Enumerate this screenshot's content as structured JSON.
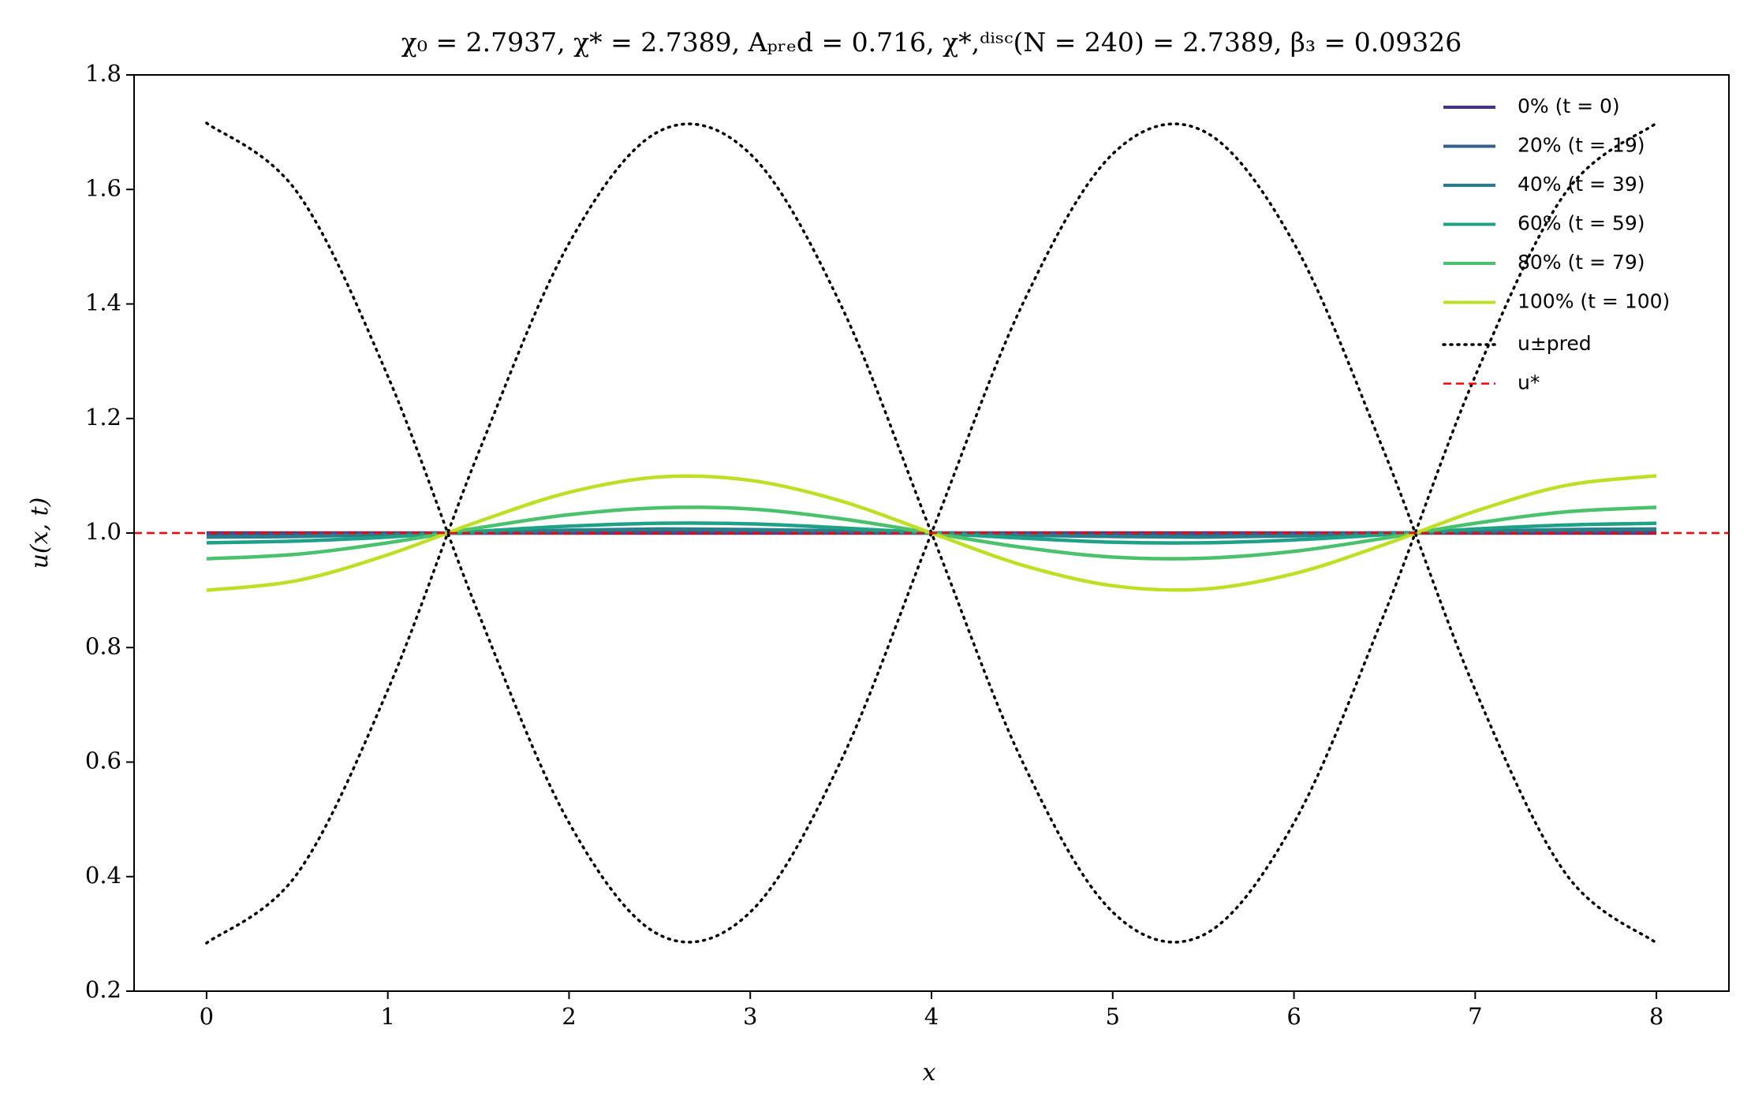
{
  "chart_data": {
    "type": "line",
    "title": "χ₀ = 2.7937,  χ* = 2.7389,  Aₚᵣₑd = 0.716,  χ*,ᵈⁱˢᶜ(N = 240) = 2.7389,  β₃ = 0.09326",
    "x_label": "x",
    "y_label": "u(x, t)",
    "xlim": [
      -0.4,
      8.4
    ],
    "ylim": [
      0.2,
      1.8
    ],
    "xticks": [
      0,
      1,
      2,
      3,
      4,
      5,
      6,
      7,
      8
    ],
    "yticks": [
      0.2,
      0.4,
      0.6,
      0.8,
      {
        "value": 1,
        "label": "1.0"
      },
      1.2,
      1.4,
      1.6,
      1.8
    ],
    "grid": false,
    "legend": "upper right",
    "x": [
      0,
      0.5,
      1,
      1.5,
      2,
      2.5,
      3,
      3.5,
      4,
      4.5,
      5,
      5.5,
      6,
      6.5,
      7,
      7.5,
      8
    ],
    "series": [
      {
        "name": "0% (t = 0)",
        "color": "#46327e",
        "style": "solid",
        "values": [
          1,
          1,
          1,
          1,
          1,
          1,
          1,
          1,
          1,
          1,
          1,
          1,
          1,
          1,
          1,
          1,
          1
        ]
      },
      {
        "name": "20% (t = 19)",
        "color": "#365c8d",
        "style": "solid",
        "values": [
          0.998,
          0.998,
          0.999,
          1.0,
          1.001,
          1.002,
          1.002,
          1.001,
          1.0,
          0.999,
          0.998,
          0.998,
          0.999,
          1.0,
          1.001,
          1.002,
          1.002
        ]
      },
      {
        "name": "40% (t = 39)",
        "color": "#277f8e",
        "style": "solid",
        "values": [
          0.993,
          0.994,
          0.997,
          1.001,
          1.005,
          1.007,
          1.006,
          1.004,
          1.0,
          0.996,
          0.994,
          0.993,
          0.995,
          0.999,
          1.003,
          1.006,
          1.007
        ]
      },
      {
        "name": "60% (t = 59)",
        "color": "#1fa187",
        "style": "solid",
        "values": [
          0.983,
          0.986,
          0.993,
          1.003,
          1.012,
          1.017,
          1.016,
          1.009,
          1.0,
          0.991,
          0.984,
          0.983,
          0.988,
          0.997,
          1.007,
          1.014,
          1.017
        ]
      },
      {
        "name": "80% (t = 79)",
        "color": "#4ac16d",
        "style": "solid",
        "values": [
          0.955,
          0.963,
          0.983,
          1.009,
          1.032,
          1.044,
          1.042,
          1.025,
          1.0,
          0.975,
          0.958,
          0.956,
          0.968,
          0.991,
          1.017,
          1.037,
          1.045
        ]
      },
      {
        "name": "100% (t = 100)",
        "color": "#bddf26",
        "style": "solid",
        "values": [
          0.9,
          0.917,
          0.962,
          1.02,
          1.071,
          1.098,
          1.092,
          1.056,
          1.0,
          0.944,
          0.908,
          0.902,
          0.929,
          0.98,
          1.038,
          1.083,
          1.1
        ]
      },
      {
        "name": "u±pred",
        "color": "#000000",
        "style": "dotted",
        "values": [
          1.716,
          1.595,
          1.274,
          0.86,
          0.494,
          0.298,
          0.338,
          0.602,
          1.0,
          1.398,
          1.662,
          1.702,
          1.506,
          1.14,
          0.726,
          0.405,
          0.284
        ]
      },
      {
        "color": "#000000",
        "style": "dotted",
        "values": [
          0.284,
          0.405,
          0.726,
          1.14,
          1.506,
          1.702,
          1.662,
          1.398,
          1.0,
          0.602,
          0.338,
          0.298,
          0.494,
          0.86,
          1.274,
          1.595,
          1.716
        ]
      }
    ],
    "hline": {
      "name": "u*",
      "color": "#ff0000",
      "style": "dashed",
      "value": 1
    }
  }
}
